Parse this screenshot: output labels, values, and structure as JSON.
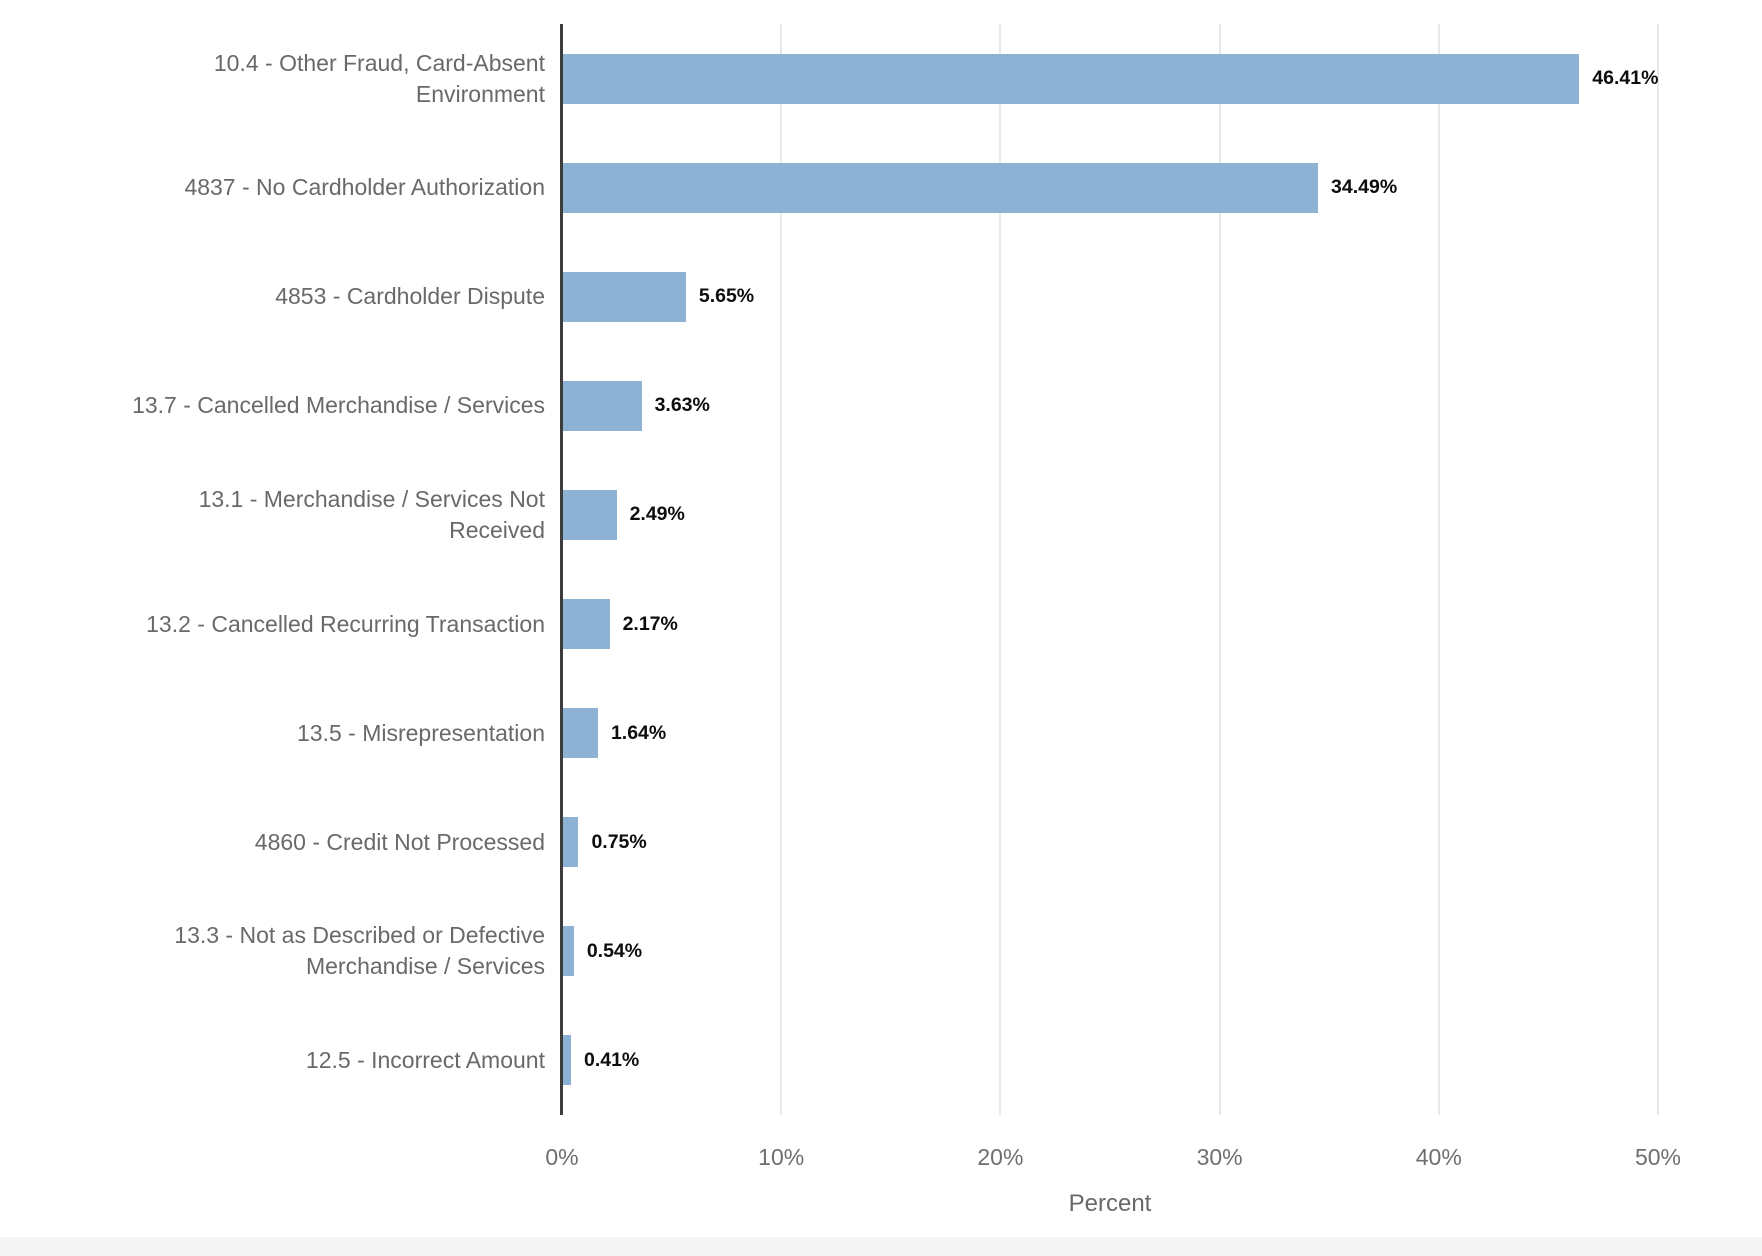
{
  "chart_data": {
    "type": "bar",
    "orientation": "horizontal",
    "title": "",
    "xlabel": "Percent",
    "ylabel": "",
    "categories": [
      "10.4 - Other Fraud, Card-Absent Environment",
      "4837 - No Cardholder Authorization",
      "4853 - Cardholder Dispute",
      "13.7 - Cancelled Merchandise / Services",
      "13.1 - Merchandise / Services Not Received",
      "13.2 - Cancelled Recurring Transaction",
      "13.5 - Misrepresentation",
      "4860 - Credit Not Processed",
      "13.3 - Not as Described or Defective Merchandise / Services",
      "12.5 - Incorrect Amount"
    ],
    "category_display": [
      "10.4 - Other Fraud, Card-Absent\nEnvironment",
      "4837 - No Cardholder Authorization",
      "4853 - Cardholder Dispute",
      "13.7 - Cancelled Merchandise / Services",
      "13.1 - Merchandise / Services Not\nReceived",
      "13.2 - Cancelled Recurring Transaction",
      "13.5 - Misrepresentation",
      "4860 - Credit Not Processed",
      "13.3 - Not as Described or Defective\nMerchandise / Services",
      "12.5 - Incorrect Amount"
    ],
    "values": [
      46.41,
      34.49,
      5.65,
      3.63,
      2.49,
      2.17,
      1.64,
      0.75,
      0.54,
      0.41
    ],
    "value_labels": [
      "46.41%",
      "34.49%",
      "5.65%",
      "3.63%",
      "2.49%",
      "2.17%",
      "1.64%",
      "0.75%",
      "0.54%",
      "0.41%"
    ],
    "x_tick_values": [
      0,
      10,
      20,
      30,
      40,
      50
    ],
    "x_tick_labels": [
      "0%",
      "10%",
      "20%",
      "30%",
      "40%",
      "50%"
    ],
    "xlim": [
      0,
      50
    ],
    "grid": "vertical",
    "legend": "none",
    "colors": {
      "bar": "#8DB2D3",
      "axis_line": "#3d3d3d",
      "gridline": "#e8e8e8",
      "category_label": "#696969",
      "value_label": "#0d0d0d",
      "tick_label": "#6f6f6f"
    }
  }
}
